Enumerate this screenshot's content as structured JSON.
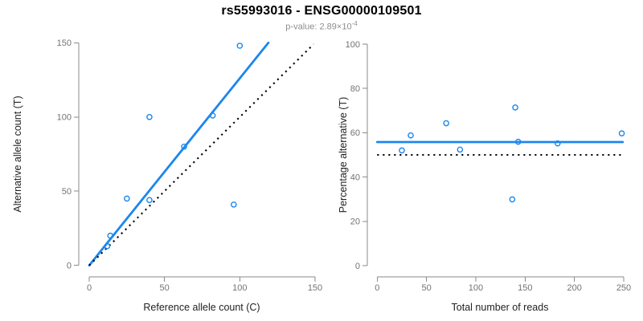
{
  "header": {
    "title": "rs55993016 - ENSG00000109501",
    "subtitle_prefix": "p-value: 2.89×10",
    "subtitle_exponent": "-4"
  },
  "colors": {
    "accent_blue": "#1C86EE",
    "dotted_black": "#000000",
    "axis_gray": "#8a8a8a",
    "tick_label_gray": "#737373"
  },
  "chart_data": [
    {
      "type": "scatter",
      "panel": "left",
      "xlabel": "Reference allele count (C)",
      "ylabel": "Alternative allele count (T)",
      "xlim": [
        0,
        150
      ],
      "ylim": [
        0,
        150
      ],
      "xticks": [
        0,
        50,
        100,
        150
      ],
      "yticks": [
        0,
        50,
        100,
        150
      ],
      "grid": false,
      "legend": "none",
      "points": [
        [
          12,
          13
        ],
        [
          14,
          20
        ],
        [
          25,
          45
        ],
        [
          40,
          44
        ],
        [
          40,
          100
        ],
        [
          63,
          80
        ],
        [
          82,
          101
        ],
        [
          96,
          41
        ],
        [
          100,
          148
        ]
      ],
      "lines": [
        {
          "name": "regression-line",
          "style": "solid",
          "color": "blue",
          "from": [
            0,
            0
          ],
          "to": [
            119,
            150
          ]
        },
        {
          "name": "identity-line",
          "style": "dotted",
          "color": "black",
          "from": [
            0,
            0
          ],
          "to": [
            149,
            149
          ]
        }
      ]
    },
    {
      "type": "scatter",
      "panel": "right",
      "xlabel": "Total number of reads",
      "ylabel": "Percentage alternative (T)",
      "xlim": [
        0,
        250
      ],
      "ylim": [
        0,
        100
      ],
      "xticks": [
        0,
        50,
        100,
        150,
        200,
        250
      ],
      "yticks": [
        0,
        20,
        40,
        60,
        80,
        100
      ],
      "grid": false,
      "legend": "none",
      "points": [
        [
          25,
          52.0
        ],
        [
          34,
          58.8
        ],
        [
          70,
          64.3
        ],
        [
          84,
          52.4
        ],
        [
          137,
          29.9
        ],
        [
          140,
          71.4
        ],
        [
          143,
          55.9
        ],
        [
          183,
          55.2
        ],
        [
          248,
          59.7
        ]
      ],
      "lines": [
        {
          "name": "mean-percentage-line",
          "style": "solid",
          "color": "blue",
          "from": [
            0,
            55.8
          ],
          "to": [
            249,
            55.8
          ]
        },
        {
          "name": "fifty-percent-line",
          "style": "dotted",
          "color": "black",
          "from": [
            0,
            50
          ],
          "to": [
            250,
            50
          ]
        }
      ]
    }
  ]
}
